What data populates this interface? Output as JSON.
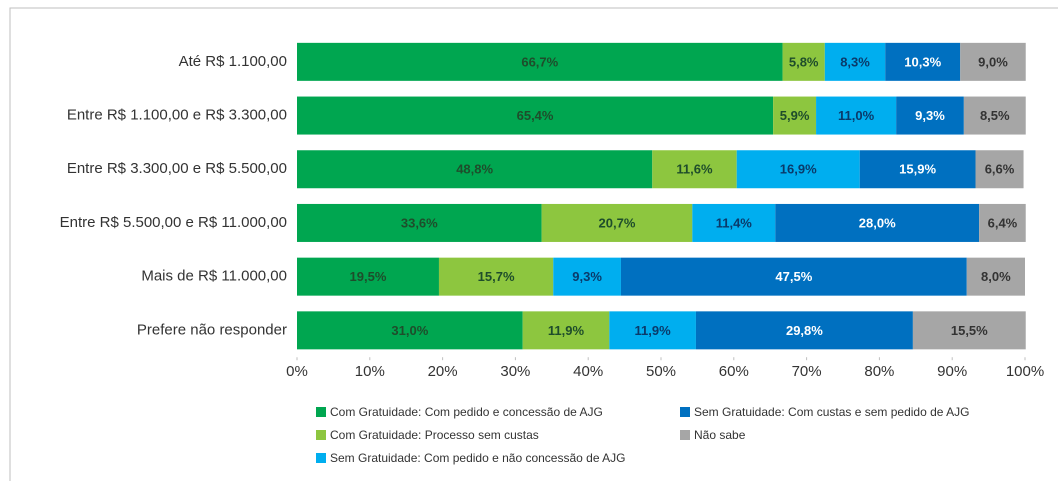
{
  "chart_data": {
    "type": "stacked-barh",
    "categories": [
      "Até R$ 1.100,00",
      "Entre R$ 1.100,00 e R$ 3.300,00",
      "Entre R$ 3.300,00 e R$ 5.500,00",
      "Entre R$ 5.500,00 e R$ 11.000,00",
      "Mais de R$ 11.000,00",
      "Prefere não responder"
    ],
    "series": [
      {
        "name": "Com Gratuidade: Com pedido e concessão de AJG",
        "color": "#00a650",
        "label_color": "#1e4d2b",
        "values": [
          66.7,
          65.4,
          48.8,
          33.6,
          19.5,
          31.0
        ],
        "value_labels": [
          "66,7%",
          "65,4%",
          "48,8%",
          "33,6%",
          "19,5%",
          "31,0%"
        ]
      },
      {
        "name": "Com Gratuidade: Processo sem custas",
        "color": "#8dc63f",
        "label_color": "#1e4d2b",
        "values": [
          5.8,
          5.9,
          11.6,
          20.7,
          15.7,
          11.9
        ],
        "value_labels": [
          "5,8%",
          "5,9%",
          "11,6%",
          "20,7%",
          "15,7%",
          "11,9%"
        ]
      },
      {
        "name": "Sem Gratuidade: Com pedido e não concessão de AJG",
        "color": "#00aeef",
        "label_color": "#0a3a6a",
        "values": [
          8.3,
          11.0,
          16.9,
          11.4,
          9.3,
          11.9
        ],
        "value_labels": [
          "8,3%",
          "11,0%",
          "16,9%",
          "11,4%",
          "9,3%",
          "11,9%"
        ]
      },
      {
        "name": "Sem Gratuidade: Com custas e sem pedido de AJG",
        "color": "#0070c0",
        "label_color": "#ffffff",
        "values": [
          10.3,
          9.3,
          15.9,
          28.0,
          47.5,
          29.8
        ],
        "value_labels": [
          "10,3%",
          "9,3%",
          "15,9%",
          "28,0%",
          "47,5%",
          "29,8%"
        ]
      },
      {
        "name": "Não sabe",
        "color": "#a6a6a6",
        "label_color": "#333333",
        "values": [
          9.0,
          8.5,
          6.6,
          6.4,
          8.0,
          15.5
        ],
        "value_labels": [
          "9,0%",
          "8,5%",
          "6,6%",
          "6,4%",
          "8,0%",
          "15,5%"
        ]
      }
    ],
    "xlim": [
      0,
      100
    ],
    "xticks": [
      {
        "value": 0,
        "label": "0%"
      },
      {
        "value": 10,
        "label": "10%"
      },
      {
        "value": 20,
        "label": "20%"
      },
      {
        "value": 30,
        "label": "30%"
      },
      {
        "value": 40,
        "label": "40%"
      },
      {
        "value": 50,
        "label": "50%"
      },
      {
        "value": 60,
        "label": "60%"
      },
      {
        "value": 70,
        "label": "70%"
      },
      {
        "value": 80,
        "label": "80%"
      },
      {
        "value": 90,
        "label": "90%"
      },
      {
        "value": 100,
        "label": "100%"
      }
    ]
  }
}
